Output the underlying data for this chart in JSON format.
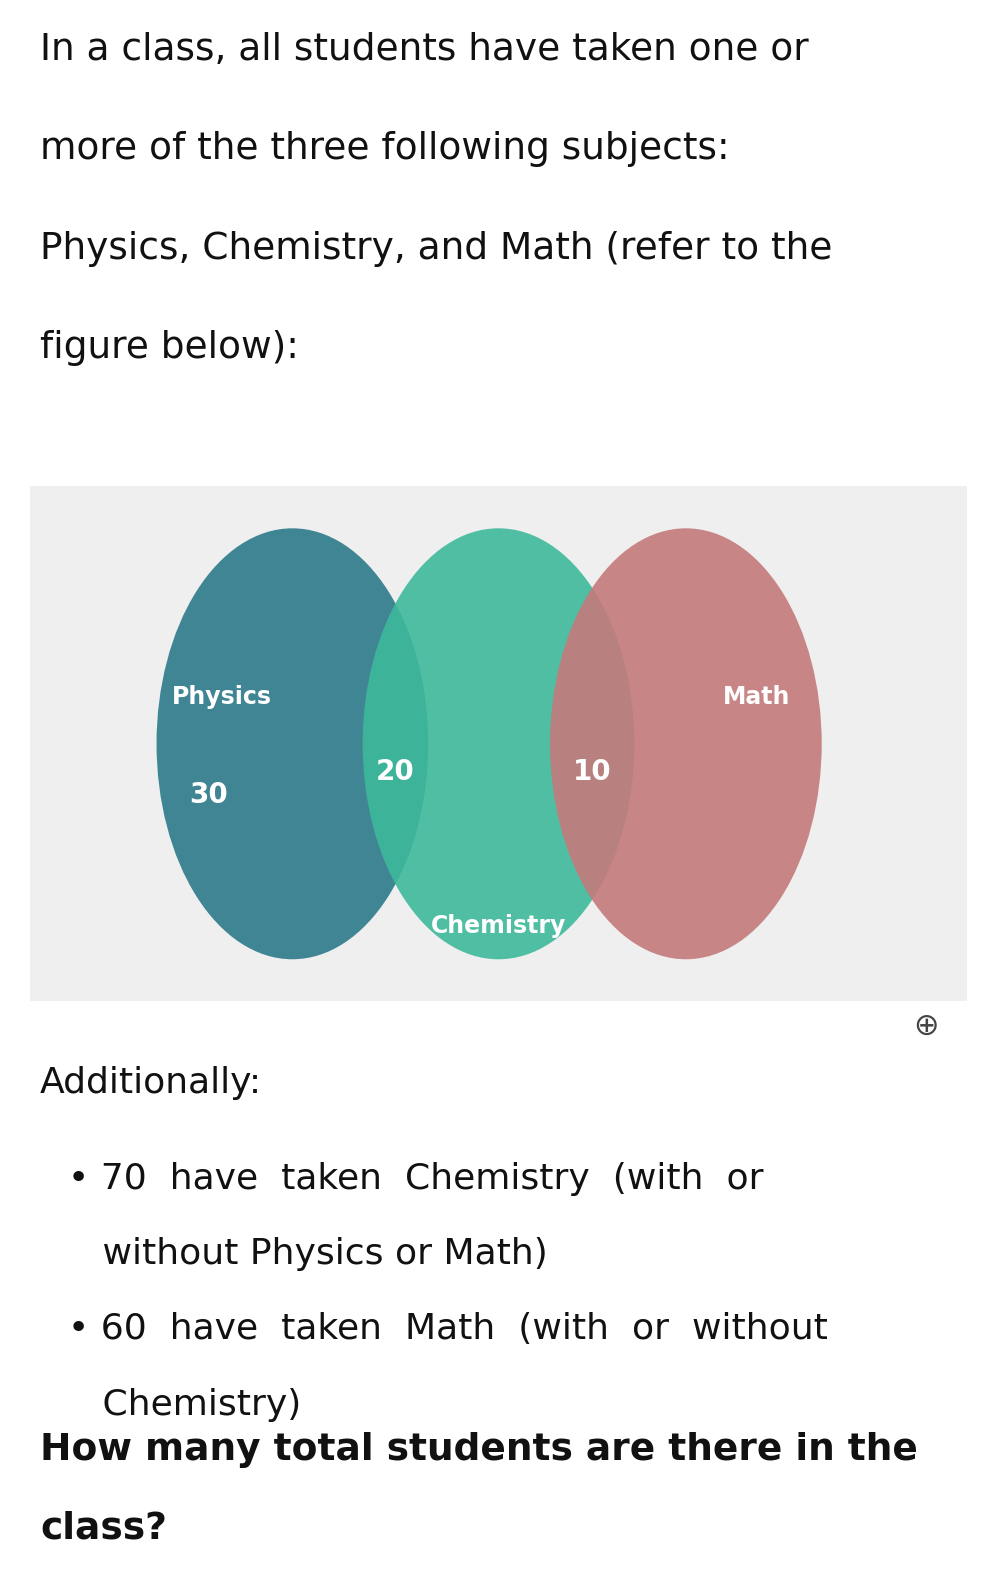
{
  "bg_color": "#ffffff",
  "venn_bg_color": "#efefef",
  "physics_color": "#2d7a8a",
  "chemistry_color": "#3db99b",
  "math_color": "#c47a7a",
  "physics_label": "Physics",
  "chemistry_label": "Chemistry",
  "math_label": "Math",
  "num_phys_chem": "20",
  "num_chem_math": "10",
  "num_physics_only": "30",
  "text_color_white": "#ffffff",
  "intro_line1": "In a class, all students have taken one or",
  "intro_line2": "more of the three following subjects:",
  "intro_line3": "Physics, Chemistry, and Math (refer to the",
  "intro_line4": "figure below):",
  "additionally_label": "Additionally:",
  "bullet1_line1": "• 70  have  taken  Chemistry  (with  or",
  "bullet1_line2": "   without Physics or Math)",
  "bullet2_line1": "• 60  have  taken  Math  (with  or  without",
  "bullet2_line2": "   Chemistry)",
  "question_line1": "How many total students are there in the",
  "question_line2": "class?",
  "intro_fontsize": 27,
  "body_fontsize": 26,
  "question_fontsize": 27,
  "venn_number_fontsize": 20,
  "venn_label_fontsize": 17,
  "venn_subject_fontsize": 17
}
